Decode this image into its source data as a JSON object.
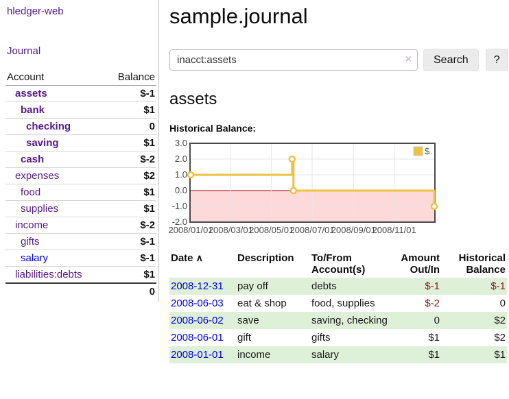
{
  "app": {
    "brand": "hledger-web",
    "nav_journal": "Journal"
  },
  "colors": {
    "link_purple": "#551A8B",
    "link_blue": "#0000EE",
    "negative_strong": "#871a1a",
    "negative_muted": "#bd7a7a",
    "row_stripe_green": "#dff0d8"
  },
  "sidebar": {
    "headers": {
      "account": "Account",
      "balance": "Balance"
    },
    "accounts": [
      {
        "name": "assets",
        "indent": 0,
        "bold": true,
        "link": "purple",
        "balance": "$-1",
        "muted": false
      },
      {
        "name": "bank",
        "indent": 1,
        "bold": true,
        "link": "purple",
        "balance": "$1",
        "muted": false
      },
      {
        "name": "checking",
        "indent": 2,
        "bold": true,
        "link": "purple",
        "balance": "0",
        "muted": false
      },
      {
        "name": "saving",
        "indent": 2,
        "bold": true,
        "link": "purple",
        "balance": "$1",
        "muted": false
      },
      {
        "name": "cash",
        "indent": 1,
        "bold": true,
        "link": "purple",
        "balance": "$-2",
        "muted": false
      },
      {
        "name": "expenses",
        "indent": 0,
        "bold": false,
        "link": "purple",
        "balance": "$2",
        "muted": false
      },
      {
        "name": "food",
        "indent": 1,
        "bold": false,
        "link": "purple",
        "balance": "$1",
        "muted": false
      },
      {
        "name": "supplies",
        "indent": 1,
        "bold": false,
        "link": "purple",
        "balance": "$1",
        "muted": false
      },
      {
        "name": "income",
        "indent": 0,
        "bold": false,
        "link": "purple",
        "balance": "$-2",
        "muted": true
      },
      {
        "name": "gifts",
        "indent": 1,
        "bold": false,
        "link": "purple",
        "balance": "$-1",
        "muted": true
      },
      {
        "name": "salary",
        "indent": 1,
        "bold": false,
        "link": "blue",
        "balance": "$-1",
        "muted": true
      },
      {
        "name": "liabilities:debts",
        "indent": 0,
        "bold": false,
        "link": "purple",
        "balance": "$1",
        "muted": false
      }
    ],
    "total": "0"
  },
  "header": {
    "title": "sample.journal"
  },
  "search": {
    "value": "inacct:assets",
    "clear_icon": "×",
    "button_label": "Search",
    "help_label": "?"
  },
  "main": {
    "account_heading": "assets",
    "chart_label": "Historical Balance:"
  },
  "chart_data": {
    "type": "line",
    "title": "Historical Balance:",
    "series": [
      {
        "name": "$",
        "step": true,
        "color": "#edc240",
        "points": [
          [
            "2008-01-01",
            1
          ],
          [
            "2008-06-01",
            2
          ],
          [
            "2008-06-03",
            0
          ],
          [
            "2008-12-31",
            -1
          ]
        ]
      }
    ],
    "x_range": [
      "2008-01-01",
      "2008-12-31"
    ],
    "x_ticks": [
      "2008/01/01",
      "2008/03/01",
      "2008/05/01",
      "2008/07/01",
      "2008/09/01",
      "2008/11/01"
    ],
    "y_ticks": [
      "3.0",
      "2.0",
      "1.0",
      "0.0",
      "-1.0",
      "-2.0"
    ],
    "ylim": [
      -2,
      3
    ],
    "grid": true,
    "legend": "$",
    "legend_position": "top-right",
    "negative_fill": "#fdd9d9",
    "zero_line_color": "#990000",
    "grid_color": "#e6e6e6",
    "border_color": "#4a4a4a"
  },
  "register": {
    "sort_arrow": "∧",
    "headers": [
      {
        "label": "Date"
      },
      {
        "label": "Description"
      },
      {
        "label": "To/From Account(s)"
      },
      {
        "label": "Amount Out/In"
      },
      {
        "label": "Historical Balance"
      }
    ],
    "rows": [
      {
        "date": "2008-12-31",
        "description": "pay off",
        "accounts": "debts",
        "amount": "$-1",
        "balance": "$-1"
      },
      {
        "date": "2008-06-03",
        "description": "eat & shop",
        "accounts": "food, supplies",
        "amount": "$-2",
        "balance": "0"
      },
      {
        "date": "2008-06-02",
        "description": "save",
        "accounts": "saving, checking",
        "amount": "0",
        "balance": "$2"
      },
      {
        "date": "2008-06-01",
        "description": "gift",
        "accounts": "gifts",
        "amount": "$1",
        "balance": "$2"
      },
      {
        "date": "2008-01-01",
        "description": "income",
        "accounts": "salary",
        "amount": "$1",
        "balance": "$1"
      }
    ]
  }
}
